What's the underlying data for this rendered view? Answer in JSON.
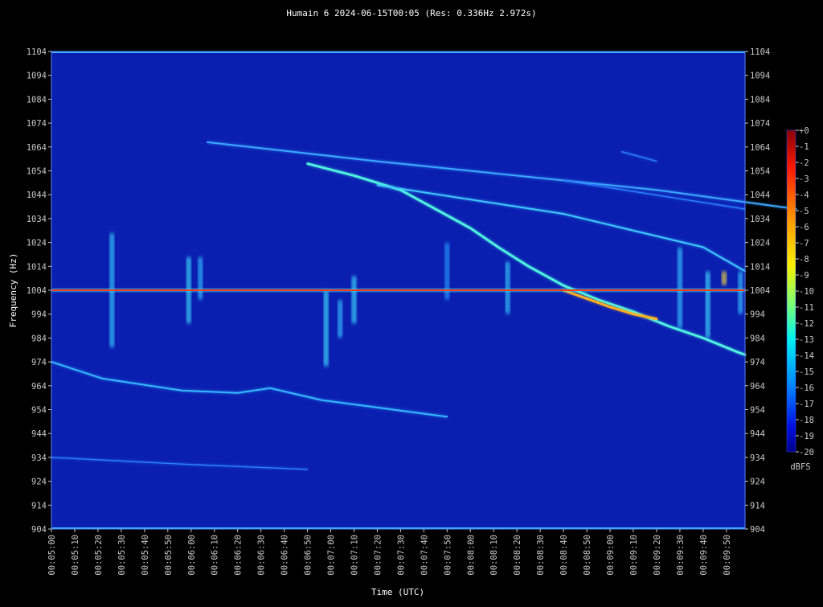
{
  "chart_data": {
    "type": "heatmap",
    "title": "Humain 6 2024-06-15T00:05 (Res: 0.336Hz 2.972s)",
    "xlabel": "Time (UTC)",
    "ylabel": "Frequency (Hz)",
    "ylim": [
      904,
      1104
    ],
    "y_ticks": [
      1104,
      1094,
      1084,
      1074,
      1064,
      1054,
      1044,
      1034,
      1024,
      1014,
      1004,
      994,
      984,
      974,
      964,
      954,
      944,
      934,
      924,
      914,
      904
    ],
    "x_ticks": [
      "00:05:00",
      "00:05:10",
      "00:05:20",
      "00:05:30",
      "00:05:40",
      "00:05:50",
      "00:06:00",
      "00:06:10",
      "00:06:20",
      "00:06:30",
      "00:06:40",
      "00:06:50",
      "00:07:00",
      "00:07:10",
      "00:07:20",
      "00:07:30",
      "00:07:40",
      "00:07:50",
      "00:08:00",
      "00:08:10",
      "00:08:20",
      "00:08:30",
      "00:08:40",
      "00:08:50",
      "00:09:00",
      "00:09:10",
      "00:09:20",
      "00:09:30",
      "00:09:40",
      "00:09:50"
    ],
    "xlim_seconds": [
      300,
      598
    ],
    "colorbar": {
      "label": "dBFS",
      "ticks": [
        "+0",
        "-1",
        "-2",
        "-3",
        "-4",
        "-5",
        "-6",
        "-7",
        "-8",
        "-9",
        "-10",
        "-11",
        "-12",
        "-13",
        "-14",
        "-15",
        "-16",
        "-17",
        "-18",
        "-19",
        "-20"
      ],
      "range": [
        -20,
        0
      ]
    },
    "background_color": "#0a1fb0",
    "carrier": {
      "frequency": 1004,
      "color": "#ff3a10"
    },
    "traces": [
      {
        "points": [
          [
            300,
            974
          ],
          [
            322,
            967
          ],
          [
            356,
            962
          ],
          [
            380,
            961
          ],
          [
            394,
            963
          ],
          [
            416,
            958
          ],
          [
            470,
            951
          ]
        ],
        "color": "#35b8ff",
        "level": -14
      },
      {
        "points": [
          [
            300,
            934
          ],
          [
            360,
            931
          ],
          [
            410,
            929
          ]
        ],
        "color": "#2a7fff",
        "level": -17
      },
      {
        "points": [
          [
            367,
            1066
          ],
          [
            440,
            1058
          ],
          [
            480,
            1054
          ],
          [
            560,
            1046
          ],
          [
            620,
            1038
          ]
        ],
        "color": "#3aa8ff",
        "level": -15
      },
      {
        "points": [
          [
            410,
            1057
          ],
          [
            430,
            1052
          ],
          [
            450,
            1046
          ],
          [
            465,
            1038
          ],
          [
            480,
            1030
          ],
          [
            492,
            1022
          ],
          [
            505,
            1014
          ],
          [
            520,
            1006
          ],
          [
            535,
            1000
          ],
          [
            550,
            995
          ],
          [
            565,
            989
          ],
          [
            580,
            984
          ],
          [
            595,
            978
          ],
          [
            598,
            977
          ]
        ],
        "color": "#4ff0e0",
        "level": -12
      },
      {
        "points": [
          [
            520,
            1004
          ],
          [
            540,
            997
          ],
          [
            550,
            994
          ],
          [
            560,
            992
          ]
        ],
        "color": "#ffb020",
        "level": -4
      },
      {
        "points": [
          [
            440,
            1048
          ],
          [
            520,
            1036
          ],
          [
            580,
            1022
          ],
          [
            598,
            1012
          ]
        ],
        "color": "#3fc8ff",
        "level": -14
      },
      {
        "points": [
          [
            520,
            1050
          ],
          [
            598,
            1038
          ]
        ],
        "color": "#2a80ff",
        "level": -17
      },
      {
        "points": [
          [
            545,
            1062
          ],
          [
            560,
            1058
          ]
        ],
        "color": "#2a80ff",
        "level": -17
      }
    ],
    "bursts": [
      {
        "t": 326,
        "f_top": 1028,
        "f_bottom": 980,
        "color": "#35d0ff"
      },
      {
        "t": 359,
        "f_top": 1018,
        "f_bottom": 990,
        "color": "#40e0ff"
      },
      {
        "t": 364,
        "f_top": 1018,
        "f_bottom": 1000,
        "color": "#30c0ff"
      },
      {
        "t": 418,
        "f_top": 1004,
        "f_bottom": 972,
        "color": "#40e8ff"
      },
      {
        "t": 424,
        "f_top": 1000,
        "f_bottom": 984,
        "color": "#35c8ff"
      },
      {
        "t": 430,
        "f_top": 1010,
        "f_bottom": 990,
        "color": "#40e0ff"
      },
      {
        "t": 470,
        "f_top": 1024,
        "f_bottom": 1000,
        "color": "#2aa0ff"
      },
      {
        "t": 496,
        "f_top": 1016,
        "f_bottom": 994,
        "color": "#35d0ff"
      },
      {
        "t": 570,
        "f_top": 1022,
        "f_bottom": 988,
        "color": "#35c8ff"
      },
      {
        "t": 582,
        "f_top": 1012,
        "f_bottom": 984,
        "color": "#40e0ff"
      },
      {
        "t": 589,
        "f_top": 1012,
        "f_bottom": 1006,
        "color": "#ffe030"
      },
      {
        "t": 596,
        "f_top": 1012,
        "f_bottom": 994,
        "color": "#35c8ff"
      }
    ]
  }
}
